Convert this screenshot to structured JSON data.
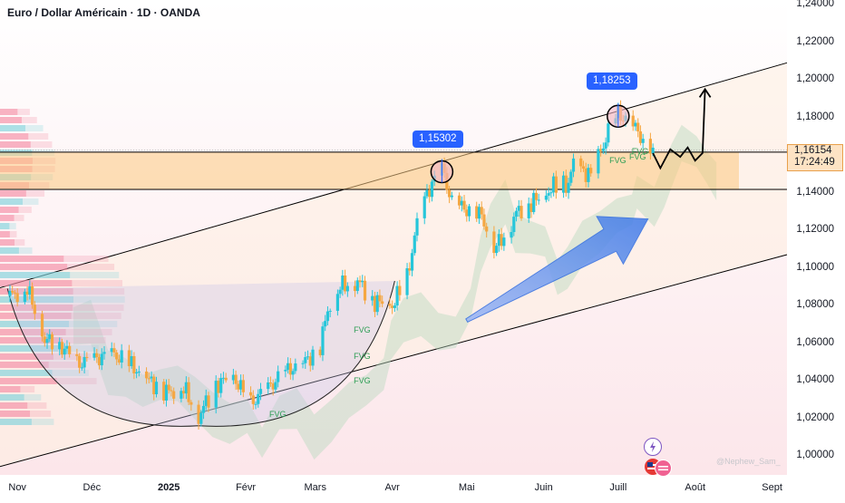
{
  "title": "Euro / Dollar Américain · 1D · OANDA",
  "last_price": "1,16154",
  "countdown": "17:24:49",
  "callouts": [
    "1,15302",
    "1,18253"
  ],
  "fvg_label": "FVG",
  "watermark": "@Nephew_Sam_",
  "colors": {
    "up": "#26c6da",
    "down": "#f5a742",
    "accent": "#2962ff",
    "zone": "#fbc97f",
    "channel": "#fdeee0"
  },
  "chart_data": {
    "type": "candlestick",
    "symbol": "EURUSD",
    "timeframe": "1D",
    "y_ticks": [
      "1,24000",
      "1,22000",
      "1,20000",
      "1,18000",
      "1,16000",
      "1,14000",
      "1,12000",
      "1,10000",
      "1,08000",
      "1,06000",
      "1,04000",
      "1,02000",
      "1,00000"
    ],
    "ylim": [
      1.0,
      1.24
    ],
    "x_ticks": [
      "Nov",
      "Déc",
      "2025",
      "Févr",
      "Mars",
      "Avr",
      "Mai",
      "Juin",
      "Juill",
      "Août",
      "Sept"
    ],
    "x_range": [
      "2024-10-25",
      "2025-09-07"
    ],
    "levels": [
      1.1615,
      1.1417
    ],
    "marked_highs": [
      {
        "date": "2025-04-21",
        "value": 1.15302
      },
      {
        "date": "2025-07-01",
        "value": 1.18253
      }
    ],
    "price_path": [
      [
        "2024-10-29",
        1.085
      ],
      [
        "2024-11-05",
        1.089
      ],
      [
        "2024-11-12",
        1.062
      ],
      [
        "2024-11-19",
        1.058
      ],
      [
        "2024-11-26",
        1.049
      ],
      [
        "2024-12-03",
        1.052
      ],
      [
        "2024-12-10",
        1.054
      ],
      [
        "2024-12-17",
        1.048
      ],
      [
        "2024-12-24",
        1.04
      ],
      [
        "2024-12-31",
        1.034
      ],
      [
        "2025-01-07",
        1.036
      ],
      [
        "2025-01-13",
        1.021
      ],
      [
        "2025-01-20",
        1.038
      ],
      [
        "2025-01-27",
        1.042
      ],
      [
        "2025-02-03",
        1.028
      ],
      [
        "2025-02-10",
        1.036
      ],
      [
        "2025-02-17",
        1.045
      ],
      [
        "2025-02-24",
        1.049
      ],
      [
        "2025-03-03",
        1.058
      ],
      [
        "2025-03-06",
        1.078
      ],
      [
        "2025-03-11",
        1.09
      ],
      [
        "2025-03-18",
        1.093
      ],
      [
        "2025-03-25",
        1.082
      ],
      [
        "2025-04-01",
        1.08
      ],
      [
        "2025-04-07",
        1.095
      ],
      [
        "2025-04-11",
        1.123
      ],
      [
        "2025-04-15",
        1.14
      ],
      [
        "2025-04-21",
        1.153
      ],
      [
        "2025-04-25",
        1.135
      ],
      [
        "2025-05-01",
        1.131
      ],
      [
        "2025-05-07",
        1.128
      ],
      [
        "2025-05-12",
        1.11
      ],
      [
        "2025-05-16",
        1.117
      ],
      [
        "2025-05-22",
        1.131
      ],
      [
        "2025-05-29",
        1.136
      ],
      [
        "2025-06-05",
        1.143
      ],
      [
        "2025-06-11",
        1.145
      ],
      [
        "2025-06-13",
        1.155
      ],
      [
        "2025-06-20",
        1.149
      ],
      [
        "2025-06-24",
        1.162
      ],
      [
        "2025-06-27",
        1.172
      ],
      [
        "2025-07-01",
        1.182
      ],
      [
        "2025-07-07",
        1.176
      ],
      [
        "2025-07-11",
        1.168
      ],
      [
        "2025-07-15",
        1.162
      ]
    ],
    "projection": [
      [
        "2025-07-15",
        1.161
      ],
      [
        "2025-07-18",
        1.153
      ],
      [
        "2025-07-22",
        1.163
      ],
      [
        "2025-07-26",
        1.159
      ],
      [
        "2025-07-29",
        1.164
      ],
      [
        "2025-08-01",
        1.157
      ],
      [
        "2025-08-04",
        1.161
      ],
      [
        "2025-08-05",
        1.195
      ]
    ],
    "channel_upper": [
      [
        "2024-10-24",
        1.089
      ],
      [
        "2025-09-07",
        1.209
      ]
    ],
    "channel_lower": [
      [
        "2024-10-24",
        0.994
      ],
      [
        "2025-09-07",
        1.107
      ]
    ],
    "fvg_zones": [
      {
        "date": "2025-03-15",
        "value": 1.067
      },
      {
        "date": "2025-03-15",
        "value": 1.053
      },
      {
        "date": "2025-03-15",
        "value": 1.04
      },
      {
        "date": "2025-02-09",
        "value": 1.022
      },
      {
        "date": "2025-06-26",
        "value": 1.157
      },
      {
        "date": "2025-07-04",
        "value": 1.159
      },
      {
        "date": "2025-07-05",
        "value": 1.162
      }
    ]
  }
}
